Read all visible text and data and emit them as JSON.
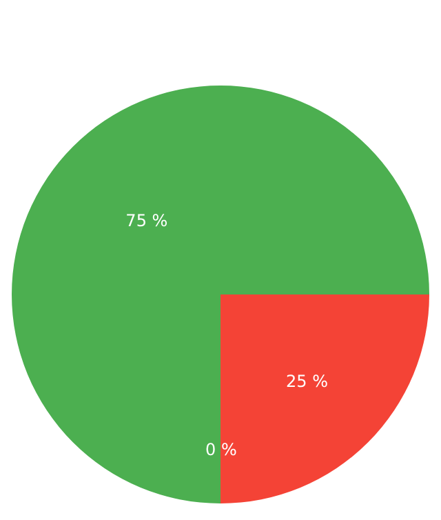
{
  "chart_data": {
    "type": "pie",
    "categories": [
      null,
      null,
      null
    ],
    "values": [
      25,
      0,
      75
    ],
    "colors": [
      "#f44336",
      "#3f51b5",
      "#4caf50"
    ],
    "value_labels": [
      "25 %",
      "0 %",
      "75 %"
    ]
  }
}
